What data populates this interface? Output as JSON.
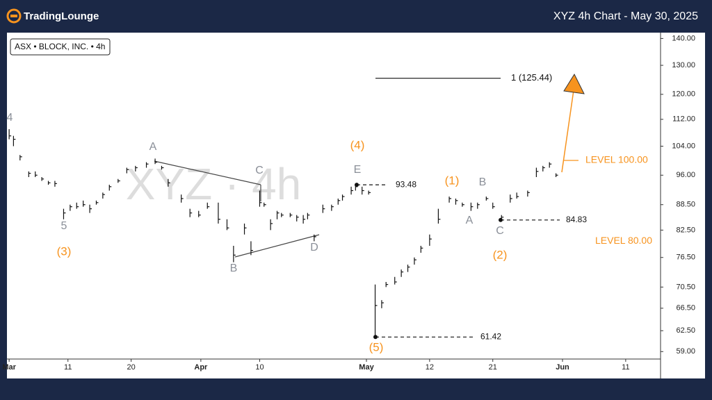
{
  "header": {
    "logo": "TradingLounge",
    "title": "XYZ 4h Chart - May 30, 2025"
  },
  "chart_data": {
    "type": "ohlc",
    "subtitle": "ASX • BLOCK, INC. • 4h",
    "watermark": "XYZ · 4h",
    "log_scale": true,
    "ylim": [
      57.8,
      142
    ],
    "yticks": [
      {
        "value": 140,
        "label": "140.00"
      },
      {
        "value": 130,
        "label": "130.00"
      },
      {
        "value": 120,
        "label": "120.00"
      },
      {
        "value": 112,
        "label": "112.00"
      },
      {
        "value": 104,
        "label": "104.00"
      },
      {
        "value": 96,
        "label": "96.00"
      },
      {
        "value": 88.5,
        "label": "88.50"
      },
      {
        "value": 82.5,
        "label": "82.50"
      },
      {
        "value": 76.5,
        "label": "76.50"
      },
      {
        "value": 70.5,
        "label": "70.50"
      },
      {
        "value": 66.5,
        "label": "66.50"
      },
      {
        "value": 62.5,
        "label": "62.50"
      },
      {
        "value": 59,
        "label": "59.00"
      }
    ],
    "xlim": [
      0,
      150
    ],
    "xticks": [
      {
        "value": 0.5,
        "label": "Mar"
      },
      {
        "value": 14,
        "label": "11"
      },
      {
        "value": 28.5,
        "label": "20"
      },
      {
        "value": 44.5,
        "label": "Apr"
      },
      {
        "value": 58,
        "label": "10"
      },
      {
        "value": 82.5,
        "label": "May"
      },
      {
        "value": 97,
        "label": "12"
      },
      {
        "value": 111.5,
        "label": "21"
      },
      {
        "value": 127.5,
        "label": "Jun"
      },
      {
        "value": 142,
        "label": "11"
      }
    ],
    "color": "#111111",
    "x": [
      0.5,
      1.5,
      3,
      5,
      6.5,
      8,
      9.5,
      11,
      13,
      14.5,
      16,
      17.5,
      19,
      20.5,
      22,
      23.5,
      25.5,
      27.5,
      29.5,
      32,
      34,
      35.5,
      37,
      40,
      42,
      44,
      46,
      48.5,
      50.5,
      52,
      54.5,
      56,
      58,
      59,
      60.5,
      62,
      63,
      65,
      66.5,
      68,
      69,
      70.5,
      72.5,
      74.5,
      76,
      77,
      79,
      80,
      81.5,
      83,
      84.5,
      86,
      87,
      89,
      90.5,
      92,
      93.5,
      95,
      97,
      99,
      101.5,
      103,
      104.5,
      106.5,
      108,
      110,
      111.5,
      113.5,
      115.5,
      117,
      119.5,
      121.5,
      123,
      124.5,
      126
    ],
    "high": [
      109,
      107,
      101.5,
      97,
      97,
      95.5,
      94.5,
      94.5,
      87.5,
      88.5,
      89,
      89.5,
      88.5,
      89.5,
      91.5,
      93.5,
      95,
      98,
      98.5,
      99.5,
      100.5,
      98.5,
      95,
      91,
      87.5,
      87,
      89,
      89,
      85,
      79,
      84,
      80,
      92,
      89,
      85,
      87,
      86.5,
      86.5,
      86,
      86,
      86.5,
      81.5,
      88.5,
      88.5,
      90,
      91,
      93,
      93.5,
      93,
      92,
      71,
      68,
      71.5,
      72.5,
      74,
      75,
      76.5,
      79,
      81.5,
      87.5,
      90.5,
      90,
      89,
      89,
      89,
      90.5,
      89,
      86,
      91,
      91.5,
      92,
      98,
      98.5,
      99.5,
      96.5
    ],
    "low": [
      106,
      104,
      100,
      95.5,
      95.5,
      94.5,
      93.5,
      93,
      85,
      87,
      87.5,
      88,
      86.5,
      88.5,
      90,
      92,
      94,
      96.5,
      97,
      98,
      99,
      97.5,
      93,
      89,
      85.5,
      85.5,
      87.5,
      84,
      82.5,
      75.5,
      81.5,
      77,
      88,
      88,
      82.5,
      85,
      85.5,
      85.5,
      84.5,
      84,
      85,
      80,
      86.5,
      87,
      88.5,
      89.5,
      91,
      92,
      91,
      91,
      61.42,
      66.5,
      70.5,
      71,
      72.5,
      73.5,
      75,
      77.5,
      79,
      84,
      89,
      88.5,
      88,
      87,
      87.5,
      89.5,
      87.5,
      84.83,
      89,
      90,
      90.5,
      95.5,
      97,
      98,
      95.5
    ],
    "close": [
      107,
      106,
      101,
      96.5,
      96,
      95,
      94,
      93.8,
      86.5,
      88,
      88,
      88.5,
      87.5,
      89,
      91,
      93,
      94.5,
      97.5,
      98,
      99,
      99.5,
      98,
      94,
      90,
      86.5,
      86,
      88,
      85,
      83,
      77,
      83,
      78,
      89,
      88.5,
      84,
      86.5,
      86,
      86,
      85.5,
      85,
      86,
      81,
      87.5,
      88,
      89.5,
      90.5,
      92,
      93,
      92,
      91.5,
      67,
      67.5,
      71,
      71.5,
      73.5,
      74.5,
      76,
      78.5,
      80.5,
      85,
      90,
      89.5,
      88.5,
      88,
      88.5,
      90,
      88,
      85.5,
      90,
      90.5,
      91.5,
      97,
      98,
      99,
      96
    ],
    "levels": [
      {
        "value": 125.44,
        "label": "1 (125.44)",
        "color": "#111111"
      },
      {
        "value": 93.48,
        "label": "93.48",
        "color": "#111111"
      },
      {
        "value": 84.83,
        "label": "84.83",
        "color": "#111111"
      },
      {
        "value": 61.42,
        "label": "61.42",
        "color": "#111111"
      },
      {
        "value": 100,
        "label": "LEVEL 100.00",
        "color": "#f7931e"
      },
      {
        "value": 80,
        "label": "LEVEL 80.00",
        "color": "#f7931e"
      }
    ],
    "wave_labels": [
      {
        "text": "4",
        "color": "#8a8f98"
      },
      {
        "text": "5",
        "color": "#8a8f98"
      },
      {
        "text": "(3)",
        "color": "#f7931e"
      },
      {
        "text": "A",
        "color": "#8a8f98"
      },
      {
        "text": "C",
        "color": "#8a8f98"
      },
      {
        "text": "B",
        "color": "#8a8f98"
      },
      {
        "text": "D",
        "color": "#8a8f98"
      },
      {
        "text": "(4)",
        "color": "#f7931e"
      },
      {
        "text": "E",
        "color": "#8a8f98"
      },
      {
        "text": "(5)",
        "color": "#f7931e"
      },
      {
        "text": "(1)",
        "color": "#f7931e"
      },
      {
        "text": "B",
        "color": "#8a8f98"
      },
      {
        "text": "A",
        "color": "#8a8f98"
      },
      {
        "text": "C",
        "color": "#8a8f98"
      },
      {
        "text": "(2)",
        "color": "#f7931e"
      }
    ]
  }
}
